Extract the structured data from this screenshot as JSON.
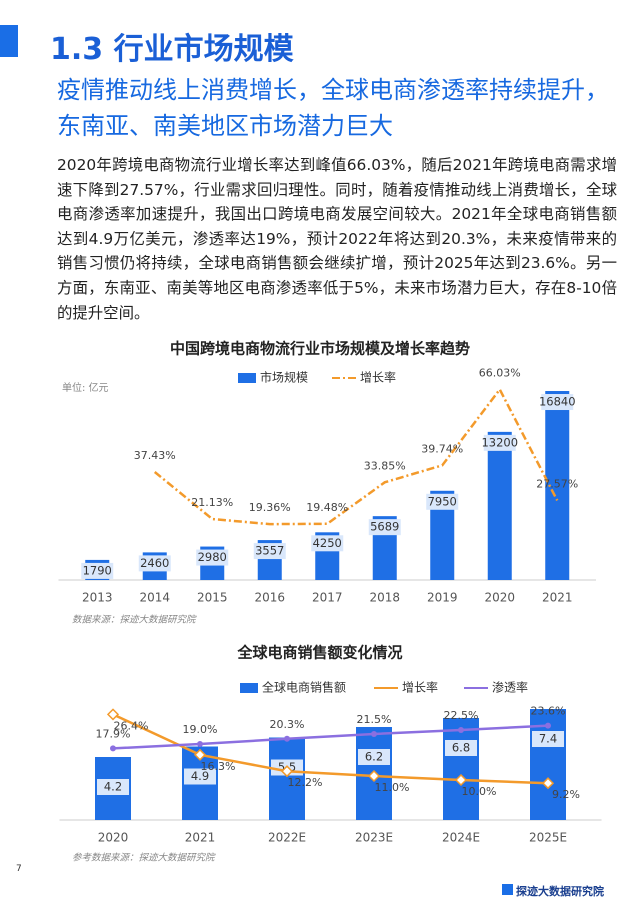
{
  "header": {
    "title": "1.3 行业市场规模",
    "subtitle": "疫情推动线上消费增长，全球电商渗透率持续提升，东南亚、南美地区市场潜力巨大"
  },
  "body": "2020年跨境电商物流行业增长率达到峰值66.03%，随后2021年跨境电商需求增速下降到27.57%，行业需求回归理性。同时，随着疫情推动线上消费增长，全球电商渗透率加速提升，我国出口跨境电商发展空间较大。2021年全球电商销售额达到4.9万亿美元，渗透率达19%，预计2022年将达到20.3%，未来疫情带来的销售习惯仍将持续，全球电商销售额会继续扩增，预计2025年达到23.6%。另一方面，东南亚、南美等地区电商渗透率低于5%，未来市场潜力巨大，存在8-10倍的提升空间。",
  "chart_data": [
    {
      "type": "bar",
      "title": "中国跨境电商物流行业市场规模及增长率趋势",
      "unit_label": "单位: 亿元",
      "source": "数据来源：探迹大数据研究院",
      "categories": [
        "2013",
        "2014",
        "2015",
        "2016",
        "2017",
        "2018",
        "2019",
        "2020",
        "2021"
      ],
      "series": [
        {
          "name": "市场规模",
          "type": "bar",
          "color": "#1f6fe5",
          "values": [
            1790,
            2460,
            2980,
            3557,
            4250,
            5689,
            7950,
            13200,
            16840
          ]
        },
        {
          "name": "增长率",
          "type": "line",
          "axis": "y2",
          "color": "#f39a2b",
          "line_style": "dashdot",
          "values": [
            null,
            37.43,
            21.13,
            19.36,
            19.48,
            33.85,
            39.74,
            66.03,
            27.57
          ],
          "value_labels": [
            null,
            "37.43%",
            "21.13%",
            "19.36%",
            "19.48%",
            "33.85%",
            "39.74%",
            "66.03%",
            "27.57%"
          ]
        }
      ],
      "ylim": [
        0,
        18000
      ],
      "y2lim": [
        0,
        70
      ]
    },
    {
      "type": "bar",
      "title": "全球电商销售额变化情况",
      "source": "参考数据来源：探迹大数据研究院",
      "categories": [
        "2020",
        "2021",
        "2022E",
        "2023E",
        "2024E",
        "2025E"
      ],
      "series": [
        {
          "name": "全球电商销售额",
          "type": "bar",
          "color": "#1f6fe5",
          "values": [
            4.2,
            4.9,
            5.5,
            6.2,
            6.8,
            7.4
          ]
        },
        {
          "name": "增长率",
          "type": "line",
          "axis": "y2",
          "color": "#f39a2b",
          "line_style": "solid",
          "values": [
            26.4,
            16.3,
            12.2,
            11.0,
            10.0,
            9.2
          ],
          "value_labels": [
            "26.4%",
            "16.3%",
            "12.2%",
            "11.0%",
            "10.0%",
            "9.2%"
          ]
        },
        {
          "name": "渗透率",
          "type": "line",
          "axis": "y2",
          "color": "#8b6fe0",
          "line_style": "solid",
          "values": [
            17.9,
            19.0,
            20.3,
            21.5,
            22.5,
            23.6
          ],
          "value_labels": [
            "17.9%",
            "19.0%",
            "20.3%",
            "21.5%",
            "22.5%",
            "23.6%"
          ]
        }
      ],
      "ylim": [
        0,
        8
      ],
      "y2lim": [
        0,
        30
      ]
    }
  ],
  "footer": {
    "page": "7",
    "brand": "探迹大数据研究院"
  }
}
